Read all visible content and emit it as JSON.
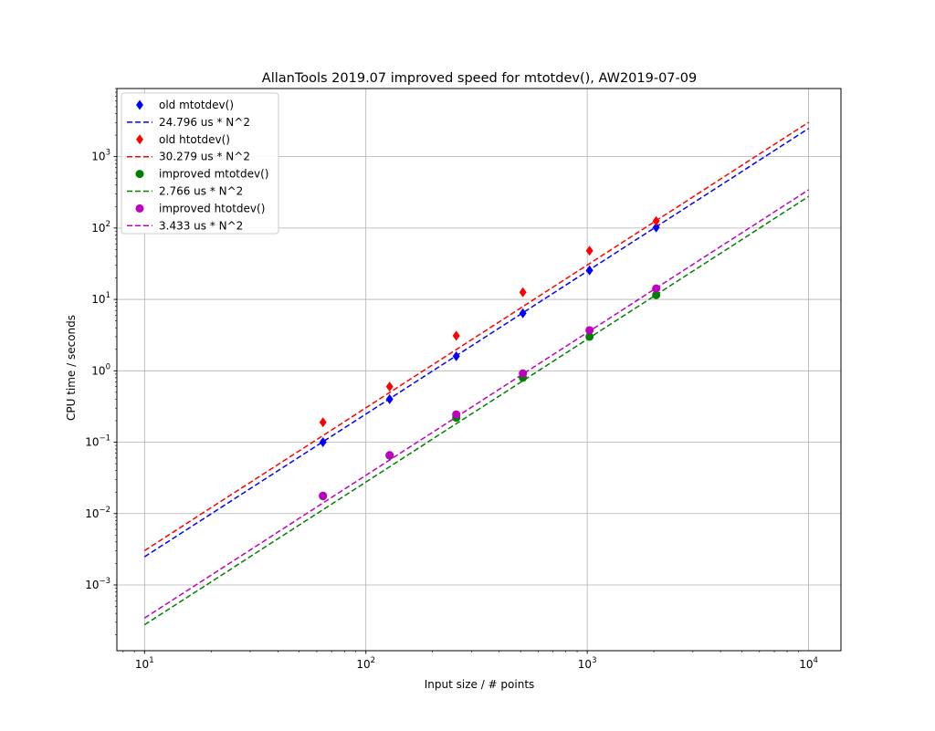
{
  "chart_data": {
    "type": "scatter",
    "title": "AllanTools 2019.07 improved speed for mtotdev(), AW2019-07-09",
    "xlabel": "Input size / # points",
    "ylabel": "CPU time / seconds",
    "xscale": "log",
    "yscale": "log",
    "xlim": [
      7.5,
      14000
    ],
    "ylim": [
      0.00012,
      9000
    ],
    "xticks": [
      10,
      100,
      1000,
      10000
    ],
    "xtick_labels": [
      {
        "base": "10",
        "exp": "1"
      },
      {
        "base": "10",
        "exp": "2"
      },
      {
        "base": "10",
        "exp": "3"
      },
      {
        "base": "10",
        "exp": "4"
      }
    ],
    "yticks": [
      0.001,
      0.01,
      0.1,
      1,
      10,
      100,
      1000
    ],
    "ytick_labels": [
      {
        "base": "10",
        "exp": "−3"
      },
      {
        "base": "10",
        "exp": "−2"
      },
      {
        "base": "10",
        "exp": "−1"
      },
      {
        "base": "10",
        "exp": "0"
      },
      {
        "base": "10",
        "exp": "1"
      },
      {
        "base": "10",
        "exp": "2"
      },
      {
        "base": "10",
        "exp": "3"
      }
    ],
    "grid": true,
    "legend_position": "top-left",
    "series": [
      {
        "name": "old mtotdev()",
        "kind": "points",
        "marker": "diamond",
        "color": "#0000ff",
        "x": [
          64,
          128,
          256,
          512,
          1024,
          2048
        ],
        "y": [
          0.1,
          0.4,
          1.6,
          6.4,
          25.5,
          102
        ]
      },
      {
        "name": "24.796 us * N^2",
        "kind": "fit",
        "color": "#0000ff",
        "coef": 2.4796e-05,
        "x": [
          10,
          10000
        ]
      },
      {
        "name": "old htotdev()",
        "kind": "points",
        "marker": "diamond",
        "color": "#ff0000",
        "x": [
          64,
          128,
          256,
          512,
          1024,
          2048
        ],
        "y": [
          0.19,
          0.6,
          3.1,
          12.6,
          48,
          125
        ]
      },
      {
        "name": "30.279 us * N^2",
        "kind": "fit",
        "color": "#ff0000",
        "coef": 3.0279e-05,
        "x": [
          10,
          10000
        ]
      },
      {
        "name": "improved mtotdev()",
        "kind": "points",
        "marker": "circle",
        "color": "#008000",
        "x": [
          64,
          128,
          256,
          512,
          1024,
          2048
        ],
        "y": [
          0.0175,
          0.065,
          0.22,
          0.8,
          3.0,
          11.5
        ]
      },
      {
        "name": "2.766 us * N^2",
        "kind": "fit",
        "color": "#008000",
        "coef": 2.766e-06,
        "x": [
          10,
          10000
        ]
      },
      {
        "name": "improved htotdev()",
        "kind": "points",
        "marker": "circle",
        "color": "#bf00bf",
        "x": [
          64,
          128,
          256,
          512,
          1024,
          2048
        ],
        "y": [
          0.0178,
          0.066,
          0.245,
          0.92,
          3.7,
          14.2
        ]
      },
      {
        "name": "3.433 us * N^2",
        "kind": "fit",
        "color": "#bf00bf",
        "coef": 3.433e-06,
        "x": [
          10,
          10000
        ]
      }
    ]
  }
}
